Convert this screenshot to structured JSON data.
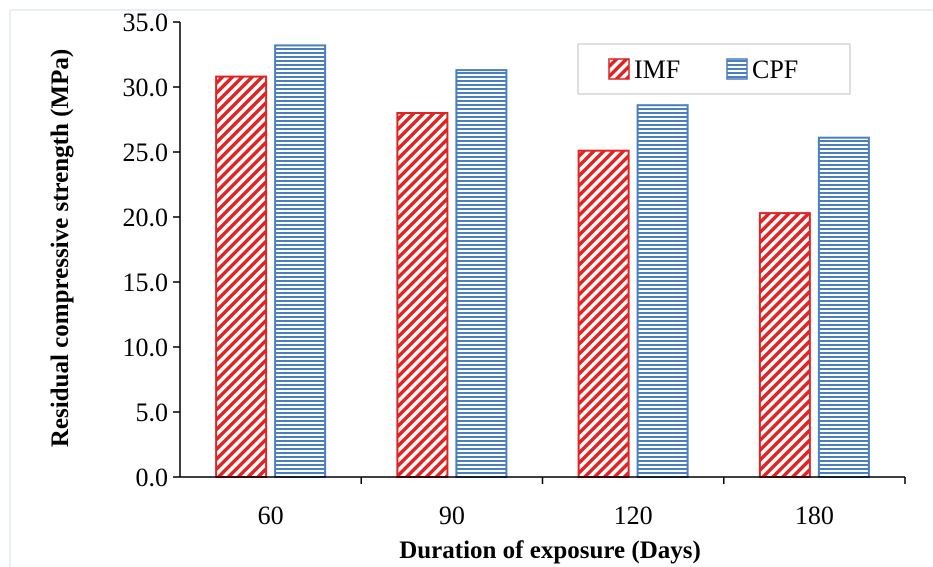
{
  "chart_data": {
    "type": "bar",
    "categories": [
      "60",
      "90",
      "120",
      "180"
    ],
    "series": [
      {
        "name": "IMF",
        "values": [
          30.8,
          28.0,
          25.1,
          20.3
        ],
        "color": "#e02424",
        "pattern": "diagonal-hatch"
      },
      {
        "name": "CPF",
        "values": [
          33.2,
          31.3,
          28.6,
          26.1
        ],
        "color": "#4a7fc1",
        "pattern": "horizontal-lines"
      }
    ],
    "xlabel": "Duration of exposure (Days)",
    "ylabel": "Residual compressive strength (MPa)",
    "ylim": [
      0,
      35
    ],
    "yticks": [
      "0.0",
      "5.0",
      "10.0",
      "15.0",
      "20.0",
      "25.0",
      "30.0",
      "35.0"
    ],
    "grid": false,
    "legend_position": "top-right"
  }
}
